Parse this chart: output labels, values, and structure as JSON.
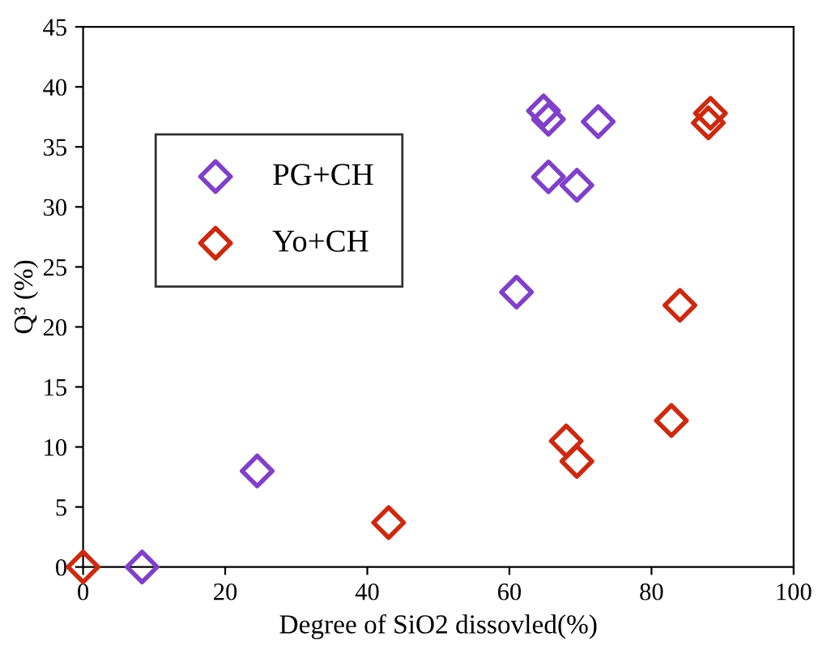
{
  "chart_data": {
    "type": "scatter",
    "xlabel": "Degree of SiO2 dissovled(%)",
    "ylabel": "Q³ (%)",
    "xlim": [
      0,
      100
    ],
    "xticks": [
      0,
      20,
      40,
      60,
      80,
      100
    ],
    "ylim": [
      0,
      45
    ],
    "yticks": [
      0,
      5,
      10,
      15,
      20,
      25,
      30,
      35,
      40,
      45
    ],
    "grid": false,
    "legend": "top left",
    "marker": "diamond",
    "series": [
      {
        "name": "PG+CH",
        "color": "#8040c8",
        "x": [
          8.3,
          24.5,
          61,
          64.8,
          65.5,
          65.5,
          69.5,
          72.5
        ],
        "values": [
          0,
          8,
          22.9,
          38,
          37.3,
          32.5,
          31.8,
          37.1
        ]
      },
      {
        "name": "Yo+CH",
        "color": "#cc2a10",
        "x": [
          0,
          43,
          68,
          69.5,
          82.8,
          84,
          88,
          88.3
        ],
        "values": [
          0,
          3.7,
          10.5,
          8.8,
          12.2,
          21.8,
          37,
          37.8
        ]
      }
    ]
  }
}
